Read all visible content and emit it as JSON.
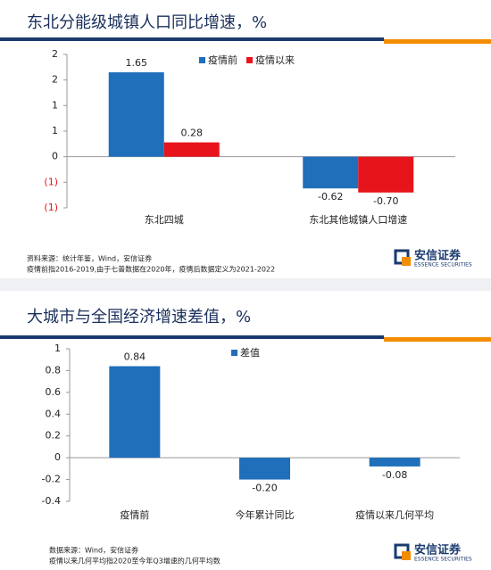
{
  "chart_data": [
    {
      "type": "bar",
      "title": "东北分能级城镇人口同比增速，%",
      "categories": [
        "东北四城",
        "东北其他城镇人口增速"
      ],
      "series": [
        {
          "name": "疫情前",
          "color": "#1f6fba",
          "values": [
            1.65,
            -0.62
          ],
          "value_labels": [
            "1.65",
            "-0.62"
          ]
        },
        {
          "name": "疫情以来",
          "color": "#e8141c",
          "values": [
            0.28,
            -0.7
          ],
          "value_labels": [
            "0.28",
            "-0.70"
          ]
        }
      ],
      "ylim": [
        -1.0,
        2.0
      ],
      "yticks": [
        2,
        {
          "value": 1.5,
          "label": "2"
        },
        1,
        {
          "value": 0.5,
          "label": "1"
        },
        0,
        {
          "value": -0.5,
          "label": "(1)"
        },
        {
          "value": -1.0,
          "label": "(1)"
        }
      ],
      "negative_tick_color": "#e8141c",
      "source": "资料来源：统计年鉴，Wind，安信证券",
      "note": "疫情前指2016-2019,由于七普数据在2020年，疫情后数据定义为2021-2022"
    },
    {
      "type": "bar",
      "title": "大城市与全国经济增速差值，%",
      "categories": [
        "疫情前",
        "今年累计同比",
        "疫情以来几何平均"
      ],
      "series": [
        {
          "name": "差值",
          "color": "#1f6fba",
          "values": [
            0.84,
            -0.2,
            -0.08
          ],
          "value_labels": [
            "0.84",
            "-0.20",
            "-0.08"
          ]
        }
      ],
      "ylim": [
        -0.4,
        1
      ],
      "yticks": [
        1,
        0.8,
        0.6,
        0.4,
        0.2,
        0,
        -0.2,
        -0.4
      ],
      "source": "数据来源：Wind，安信证券",
      "note": "疫情以来几何平均指2020至今年Q3增速的几何平均数"
    }
  ],
  "logo": {
    "name": "安信证券",
    "subtitle": "ESSENCE SECURITIES"
  }
}
